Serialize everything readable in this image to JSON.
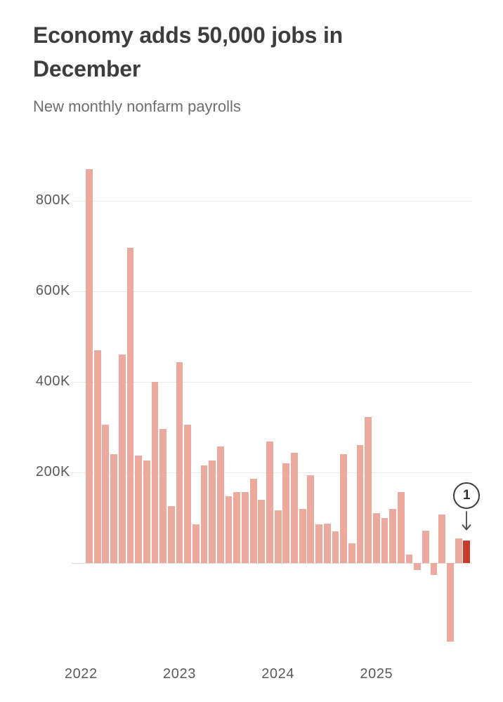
{
  "header": {
    "title": "Economy adds 50,000 jobs in December",
    "subtitle": "New monthly nonfarm payrolls"
  },
  "annotation": {
    "badge_label": "1",
    "points_to": "Dec 2025"
  },
  "chart_data": {
    "type": "bar",
    "title": "Economy adds 50,000 jobs in December",
    "subtitle": "New monthly nonfarm payrolls",
    "unit": "jobs added, thousands",
    "x": [
      "Feb 2022",
      "Mar 2022",
      "Apr 2022",
      "May 2022",
      "Jun 2022",
      "Jul 2022",
      "Aug 2022",
      "Sep 2022",
      "Oct 2022",
      "Nov 2022",
      "Dec 2022",
      "Jan 2023",
      "Feb 2023",
      "Mar 2023",
      "Apr 2023",
      "May 2023",
      "Jun 2023",
      "Jul 2023",
      "Aug 2023",
      "Sep 2023",
      "Oct 2023",
      "Nov 2023",
      "Dec 2023",
      "Jan 2024",
      "Feb 2024",
      "Mar 2024",
      "Apr 2024",
      "May 2024",
      "Jun 2024",
      "Jul 2024",
      "Aug 2024",
      "Sep 2024",
      "Oct 2024",
      "Nov 2024",
      "Dec 2024",
      "Jan 2025",
      "Feb 2025",
      "Mar 2025",
      "Apr 2025",
      "May 2025",
      "Jun 2025",
      "Jul 2025",
      "Aug 2025",
      "Sep 2025",
      "Oct 2025",
      "Nov 2025",
      "Dec 2025"
    ],
    "values_thousands": [
      870,
      470,
      305,
      240,
      461,
      697,
      237,
      226,
      400,
      297,
      125,
      443,
      306,
      85,
      216,
      227,
      257,
      147,
      156,
      157,
      186,
      140,
      268,
      117,
      221,
      243,
      119,
      194,
      85,
      87,
      70,
      240,
      43,
      261,
      323,
      110,
      100,
      120,
      157,
      18,
      -16,
      71,
      -27,
      107,
      -174,
      55,
      50
    ],
    "highlight_index": 46,
    "highlight_value_thousands": 50,
    "yticks": [
      {
        "value": 0,
        "label": ""
      },
      {
        "value": 200,
        "label": "200K"
      },
      {
        "value": 400,
        "label": "400K"
      },
      {
        "value": 600,
        "label": "600K"
      },
      {
        "value": 800,
        "label": "800K"
      }
    ],
    "year_ticks": [
      "2022",
      "2023",
      "2024",
      "2025"
    ],
    "ylim": [
      -200,
      900
    ],
    "grid": true,
    "legend": false,
    "colors": {
      "bar": "#ecaa9e",
      "highlight_bar": "#c83a29",
      "gridline": "#eaeaea",
      "zero_line": "#dcdcdc",
      "title_text": "#3d3d3d",
      "subtitle_text": "#6f6f6f",
      "axis_text": "#5a5a5a"
    }
  }
}
